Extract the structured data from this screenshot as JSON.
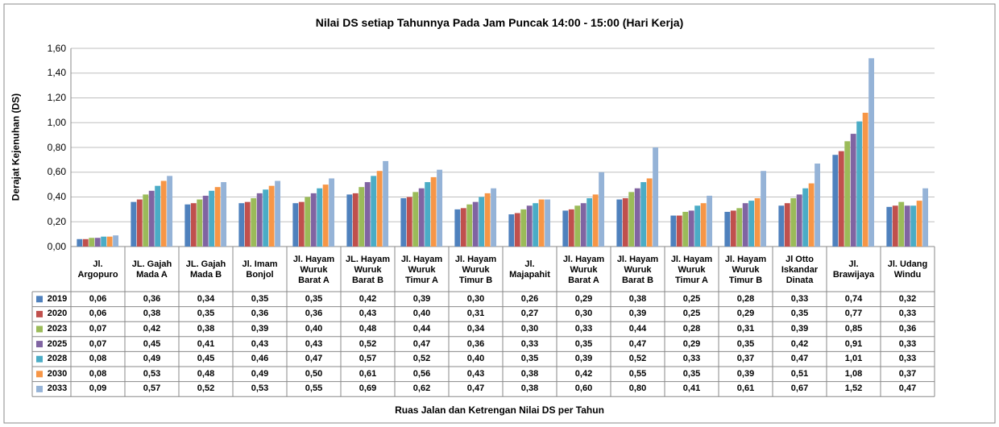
{
  "chart_data": {
    "type": "bar",
    "title": "Nilai  DS setiap Tahunnya Pada Jam  Puncak  14:00 - 15:00 (Hari Kerja)",
    "x_label": "Ruas Jalan dan Ketrengan Nilai DS per Tahun",
    "y_label": "Derajat Kejenuhan (DS)",
    "categories": [
      "Jl.\nArgopuro",
      "JL. Gajah\nMada A",
      "JL. Gajah\nMada B",
      "Jl. Imam\nBonjol",
      "Jl. Hayam\nWuruk\nBarat A",
      "JL. Hayam\nWuruk\nBarat B",
      "Jl. Hayam\nWuruk\nTimur A",
      "Jl. Hayam\nWuruk\nTimur B",
      "Jl.\nMajapahit",
      "Jl. Hayam\nWuruk\nBarat A",
      "Jl. Hayam\nWuruk\nBarat B",
      "Jl. Hayam\nWuruk\nTimur A",
      "Jl. Hayam\nWuruk\nTimur B",
      "Jl Otto\nIskandar\nDinata",
      "Jl.\nBrawijaya",
      "Jl. Udang\nWindu"
    ],
    "series": [
      {
        "name": "2019",
        "color": "#4f81bd",
        "values": [
          0.06,
          0.36,
          0.34,
          0.35,
          0.35,
          0.42,
          0.39,
          0.3,
          0.26,
          0.29,
          0.38,
          0.25,
          0.28,
          0.33,
          0.74,
          0.32
        ],
        "value_labels": [
          "0,06",
          "0,36",
          "0,34",
          "0,35",
          "0,35",
          "0,42",
          "0,39",
          "0,30",
          "0,26",
          "0,29",
          "0,38",
          "0,25",
          "0,28",
          "0,33",
          "0,74",
          "0,32"
        ]
      },
      {
        "name": "2020",
        "color": "#c0504d",
        "values": [
          0.06,
          0.38,
          0.35,
          0.36,
          0.36,
          0.43,
          0.4,
          0.31,
          0.27,
          0.3,
          0.39,
          0.25,
          0.29,
          0.35,
          0.77,
          0.33
        ],
        "value_labels": [
          "0,06",
          "0,38",
          "0,35",
          "0,36",
          "0,36",
          "0,43",
          "0,40",
          "0,31",
          "0,27",
          "0,30",
          "0,39",
          "0,25",
          "0,29",
          "0,35",
          "0,77",
          "0,33"
        ]
      },
      {
        "name": "2023",
        "color": "#9bbb59",
        "values": [
          0.07,
          0.42,
          0.38,
          0.39,
          0.4,
          0.48,
          0.44,
          0.34,
          0.3,
          0.33,
          0.44,
          0.28,
          0.31,
          0.39,
          0.85,
          0.36
        ],
        "value_labels": [
          "0,07",
          "0,42",
          "0,38",
          "0,39",
          "0,40",
          "0,48",
          "0,44",
          "0,34",
          "0,30",
          "0,33",
          "0,44",
          "0,28",
          "0,31",
          "0,39",
          "0,85",
          "0,36"
        ]
      },
      {
        "name": "2025",
        "color": "#8064a2",
        "values": [
          0.07,
          0.45,
          0.41,
          0.43,
          0.43,
          0.52,
          0.47,
          0.36,
          0.33,
          0.35,
          0.47,
          0.29,
          0.35,
          0.42,
          0.91,
          0.33
        ],
        "value_labels": [
          "0,07",
          "0,45",
          "0,41",
          "0,43",
          "0,43",
          "0,52",
          "0,47",
          "0,36",
          "0,33",
          "0,35",
          "0,47",
          "0,29",
          "0,35",
          "0,42",
          "0,91",
          "0,33"
        ]
      },
      {
        "name": "2028",
        "color": "#4bacc6",
        "values": [
          0.08,
          0.49,
          0.45,
          0.46,
          0.47,
          0.57,
          0.52,
          0.4,
          0.35,
          0.39,
          0.52,
          0.33,
          0.37,
          0.47,
          1.01,
          0.33
        ],
        "value_labels": [
          "0,08",
          "0,49",
          "0,45",
          "0,46",
          "0,47",
          "0,57",
          "0,52",
          "0,40",
          "0,35",
          "0,39",
          "0,52",
          "0,33",
          "0,37",
          "0,47",
          "1,01",
          "0,33"
        ]
      },
      {
        "name": "2030",
        "color": "#f79646",
        "values": [
          0.08,
          0.53,
          0.48,
          0.49,
          0.5,
          0.61,
          0.56,
          0.43,
          0.38,
          0.42,
          0.55,
          0.35,
          0.39,
          0.51,
          1.08,
          0.37
        ],
        "value_labels": [
          "0,08",
          "0,53",
          "0,48",
          "0,49",
          "0,50",
          "0,61",
          "0,56",
          "0,43",
          "0,38",
          "0,42",
          "0,55",
          "0,35",
          "0,39",
          "0,51",
          "1,08",
          "0,37"
        ]
      },
      {
        "name": "2033",
        "color": "#95b3d7",
        "values": [
          0.09,
          0.57,
          0.52,
          0.53,
          0.55,
          0.69,
          0.62,
          0.47,
          0.38,
          0.6,
          0.8,
          0.41,
          0.61,
          0.67,
          1.52,
          0.47
        ],
        "value_labels": [
          "0,09",
          "0,57",
          "0,52",
          "0,53",
          "0,55",
          "0,69",
          "0,62",
          "0,47",
          "0,38",
          "0,60",
          "0,80",
          "0,41",
          "0,61",
          "0,67",
          "1,52",
          "0,47"
        ]
      }
    ],
    "ylim": [
      0,
      1.6
    ],
    "yticks": [
      {
        "value": 0,
        "label": "0,00"
      },
      {
        "value": 0.2,
        "label": "0,20"
      },
      {
        "value": 0.4,
        "label": "0,40"
      },
      {
        "value": 0.6,
        "label": "0,60"
      },
      {
        "value": 0.8,
        "label": "0,80"
      },
      {
        "value": 1,
        "label": "1,00"
      },
      {
        "value": 1.2,
        "label": "1,20"
      },
      {
        "value": 1.4,
        "label": "1,40"
      },
      {
        "value": 1.6,
        "label": "1,60"
      }
    ],
    "grid": true
  }
}
